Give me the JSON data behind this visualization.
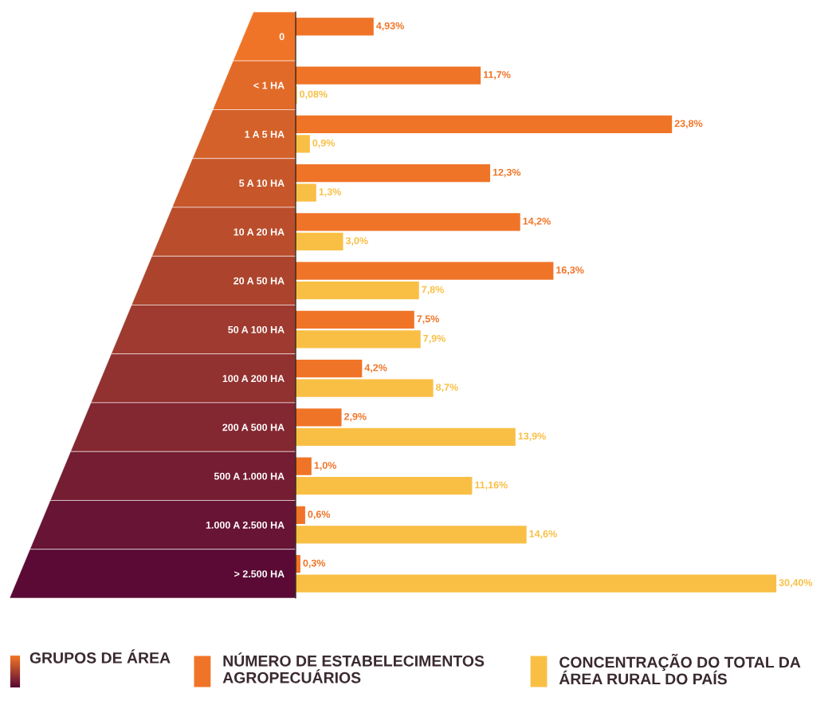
{
  "chart_data": {
    "type": "bar",
    "orientation": "horizontal",
    "categories": [
      "0",
      "< 1 HA",
      "1 A 5 HA",
      "5 A 10 HA",
      "10 A 20 HA",
      "20 A 50 HA",
      "50 A 100 HA",
      "100 A 200 HA",
      "200 A 500 HA",
      "500 A 1.000 HA",
      "1.000 A 2.500 HA",
      "> 2.500 HA"
    ],
    "series": [
      {
        "name": "NÚMERO DE ESTABELECIMENTOS\nAGROPECUÁRIOS",
        "color": "#f07427",
        "values": [
          4.93,
          11.7,
          23.8,
          12.3,
          14.2,
          16.3,
          7.5,
          4.2,
          2.9,
          1.0,
          0.6,
          0.3
        ],
        "value_labels": [
          "4,93%",
          "11,7%",
          "23,8%",
          "12,3%",
          "14,2%",
          "16,3%",
          "7,5%",
          "4,2%",
          "2,9%",
          "1,0%",
          "0,6%",
          "0,3%"
        ]
      },
      {
        "name": "CONCENTRAÇÃO DO TOTAL DA\nÁREA RURAL DO PAÍS",
        "color": "#f9bf45",
        "values": [
          null,
          0.08,
          0.9,
          1.3,
          3.0,
          7.8,
          7.9,
          8.7,
          13.9,
          11.16,
          14.6,
          30.4
        ],
        "value_labels": [
          null,
          "0,08%",
          "0,9%",
          "1,3%",
          "3,0%",
          "7,8%",
          "7,9%",
          "8,7%",
          "13,9%",
          "11,16%",
          "14,6%",
          "30,40%"
        ]
      }
    ],
    "annotations": [
      "GRUPOS DE ÁREA"
    ],
    "legend": "bottom",
    "grid": false
  }
}
